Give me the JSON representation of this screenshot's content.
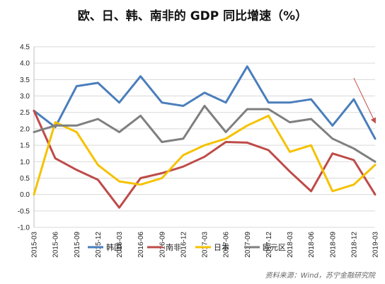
{
  "chart_data": {
    "type": "line",
    "title": "欧、日、韩、南非的 GDP 同比增速（%）",
    "xlabel": "",
    "ylabel": "",
    "ylim": [
      -1.0,
      4.5
    ],
    "y_ticks": [
      "-1.0",
      "-0.5",
      "0.0",
      "0.5",
      "1.0",
      "1.5",
      "2.0",
      "2.5",
      "3.0",
      "3.5",
      "4.0",
      "4.5"
    ],
    "categories": [
      "2015-03",
      "2015-06",
      "2015-09",
      "2015-12",
      "2016-03",
      "2016-06",
      "2016-09",
      "2016-12",
      "2017-03",
      "2017-06",
      "2017-09",
      "2017-12",
      "2018-03",
      "2018-06",
      "2018-09",
      "2018-12",
      "2019-03"
    ],
    "grid": true,
    "legend_position": "bottom",
    "series": [
      {
        "name": "韩国",
        "color": "#4a7ebb",
        "values": [
          2.55,
          2.05,
          3.3,
          3.4,
          2.8,
          3.6,
          2.8,
          2.7,
          3.1,
          2.8,
          3.9,
          2.8,
          2.8,
          2.9,
          2.1,
          2.9,
          1.7
        ]
      },
      {
        "name": "南非",
        "color": "#be4b48",
        "values": [
          2.55,
          1.1,
          0.75,
          0.45,
          -0.4,
          0.5,
          0.65,
          0.85,
          1.15,
          1.6,
          1.58,
          1.35,
          0.7,
          0.1,
          1.25,
          1.05,
          0.0
        ]
      },
      {
        "name": "日本",
        "color": "#f5c200",
        "values": [
          0.0,
          2.2,
          1.9,
          0.9,
          0.4,
          0.3,
          0.5,
          1.2,
          1.5,
          1.7,
          2.1,
          2.4,
          1.3,
          1.5,
          0.1,
          0.3,
          0.9
        ]
      },
      {
        "name": "欧元区",
        "color": "#7f7f7f",
        "values": [
          1.9,
          2.1,
          2.1,
          2.3,
          1.9,
          2.4,
          1.6,
          1.7,
          2.7,
          1.9,
          2.6,
          2.6,
          2.2,
          2.3,
          1.7,
          1.4,
          1.0
        ]
      }
    ],
    "annotations": [
      {
        "type": "arrow",
        "color": "#c0504d",
        "x_from": "2018-12",
        "y_from": 3.55,
        "x_to": "2019-03",
        "y_to": 2.2
      }
    ],
    "source": "资料来源：Wind，苏宁金融研究院"
  }
}
